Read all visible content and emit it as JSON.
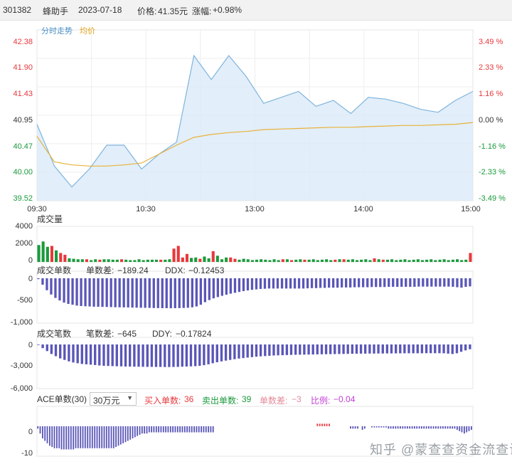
{
  "header": {
    "code": "301382",
    "name": "蜂助手",
    "date": "2023-07-18",
    "price_label": "价格:",
    "price": "41.35元",
    "change_label": "涨幅:",
    "change": "+0.98%"
  },
  "panels": {
    "price": {
      "legend_price": "分时走势",
      "legend_avg": "均价",
      "price_color": "#7fb5dd",
      "fill_color": "#dbeaf8",
      "avg_color": "#e8b23a",
      "y_ticks": [
        "42.38",
        "41.90",
        "41.43",
        "40.95",
        "40.47",
        "40.00",
        "39.52"
      ],
      "pct_ticks": [
        "3.49 %",
        "2.33 %",
        "1.16 %",
        "0.00 %",
        "-1.16 %",
        "-2.33 %",
        "-3.49 %"
      ],
      "x_ticks": [
        "09:30",
        "10:30",
        "13:00",
        "14:00",
        "15:00"
      ]
    },
    "volume": {
      "title": "成交量",
      "y_ticks": [
        "4000",
        "2000",
        "0"
      ]
    },
    "order_count": {
      "title": "成交单数",
      "diff_label": "单数差:",
      "diff_value": "−189.24",
      "ddx_label": "DDX:",
      "ddx_value": "−0.12453",
      "y_ticks": [
        "0",
        "-500",
        "-1,000"
      ]
    },
    "trade_count": {
      "title": "成交笔数",
      "diff_label": "笔数差:",
      "diff_value": "−645",
      "ddy_label": "DDY:",
      "ddy_value": "−0.17824",
      "y_ticks": [
        "0",
        "-3,000",
        "-6,000"
      ]
    },
    "ace": {
      "title": "ACE单数(30)",
      "select_value": "30万元",
      "buy_label": "买入单数:",
      "buy_value": "36",
      "sell_label": "卖出单数:",
      "sell_value": "39",
      "diff_label": "单数差:",
      "diff_value": "−3",
      "ratio_label": "比例:",
      "ratio_value": "−0.04",
      "y_ticks": [
        "0",
        "-10"
      ]
    }
  },
  "watermark": "知乎 @蒙查查资金流查询",
  "chart_data": [
    {
      "type": "line",
      "title": "",
      "x": [
        "09:30",
        "09:40",
        "09:50",
        "10:00",
        "10:10",
        "10:20",
        "10:30",
        "10:40",
        "10:50",
        "11:00",
        "11:10",
        "11:20",
        "11:30",
        "13:00",
        "13:10",
        "13:20",
        "13:30",
        "13:40",
        "13:50",
        "14:00",
        "14:10",
        "14:20",
        "14:30",
        "14:40",
        "14:50",
        "15:00"
      ],
      "series": [
        {
          "name": "分时走势",
          "values": [
            40.8,
            40.1,
            39.75,
            40.05,
            40.45,
            40.45,
            40.05,
            40.3,
            40.5,
            41.95,
            41.55,
            41.95,
            41.6,
            41.15,
            41.25,
            41.35,
            41.1,
            41.2,
            40.98,
            41.25,
            41.22,
            41.15,
            41.05,
            41.0,
            41.2,
            41.35
          ]
        },
        {
          "name": "均价",
          "values": [
            40.6,
            40.17,
            40.12,
            40.1,
            40.1,
            40.12,
            40.15,
            40.3,
            40.45,
            40.58,
            40.63,
            40.66,
            40.68,
            40.71,
            40.72,
            40.73,
            40.74,
            40.75,
            40.75,
            40.76,
            40.77,
            40.78,
            40.78,
            40.79,
            40.8,
            40.83
          ]
        }
      ],
      "ylim": [
        39.52,
        42.38
      ],
      "y_right_percent": [
        -3.49,
        3.49
      ],
      "grid": true
    },
    {
      "type": "bar",
      "title": "成交量",
      "values_up": [
        1400,
        0,
        900,
        1800,
        1100,
        1000,
        800,
        300,
        0,
        200,
        0,
        300,
        0,
        0,
        250,
        0,
        200,
        0,
        0,
        300,
        0,
        0,
        0,
        0,
        0,
        0,
        0,
        0,
        250,
        0,
        0,
        1500,
        1800,
        500,
        900,
        400,
        0,
        350,
        0,
        0,
        1200,
        300,
        0,
        400,
        500,
        350,
        200,
        0,
        0,
        0,
        0,
        0,
        0,
        0,
        0,
        0,
        300,
        0,
        200,
        0,
        0,
        250,
        0,
        200,
        0,
        0,
        0,
        0,
        250,
        0,
        300,
        0,
        0,
        0,
        200,
        0,
        0,
        400,
        0,
        250,
        0,
        0,
        0,
        0,
        0,
        0,
        0,
        0,
        0,
        200,
        0,
        0,
        0,
        0,
        0,
        0,
        0,
        0,
        0,
        1000
      ],
      "values_down": [
        1900,
        2300,
        1700,
        1200,
        1300,
        600,
        700,
        400,
        350,
        300,
        300,
        250,
        200,
        300,
        200,
        300,
        300,
        250,
        250,
        200,
        250,
        200,
        200,
        300,
        200,
        250,
        250,
        250,
        200,
        250,
        300,
        900,
        1000,
        300,
        400,
        450,
        500,
        300,
        600,
        400,
        500,
        700,
        300,
        500,
        400,
        300,
        250,
        350,
        300,
        200,
        250,
        300,
        250,
        200,
        300,
        200,
        250,
        300,
        200,
        250,
        300,
        200,
        250,
        300,
        200,
        250,
        300,
        200,
        250,
        300,
        200,
        250,
        300,
        200,
        250,
        300,
        200,
        250,
        300,
        200,
        250,
        300,
        200,
        250,
        300,
        200,
        250,
        300,
        200,
        250,
        300,
        200,
        250,
        300,
        200,
        250,
        300,
        200,
        250,
        400
      ],
      "ylim": [
        0,
        4000
      ]
    },
    {
      "type": "bar",
      "title": "成交单数",
      "values": [
        -20,
        -150,
        -280,
        -380,
        -460,
        -520,
        -570,
        -600,
        -620,
        -640,
        -650,
        -655,
        -660,
        -665,
        -668,
        -670,
        -672,
        -675,
        -678,
        -680,
        -682,
        -684,
        -686,
        -688,
        -690,
        -692,
        -694,
        -696,
        -698,
        -700,
        -700,
        -702,
        -700,
        -698,
        -695,
        -690,
        -680,
        -660,
        -620,
        -560,
        -510,
        -470,
        -440,
        -410,
        -385,
        -360,
        -340,
        -320,
        -300,
        -285,
        -270,
        -260,
        -250,
        -245,
        -240,
        -240,
        -240,
        -240,
        -240,
        -240,
        -240,
        -240,
        -240,
        -235,
        -230,
        -230,
        -225,
        -225,
        -220,
        -220,
        -220,
        -215,
        -215,
        -215,
        -210,
        -210,
        -210,
        -210,
        -205,
        -205,
        -205,
        -205,
        -200,
        -200,
        -200,
        -200,
        -200,
        -200,
        -200,
        -195,
        -195,
        -195,
        -195,
        -195,
        -195,
        -195,
        -195,
        -200,
        -210,
        -220,
        -200,
        -190
      ],
      "ylim": [
        -1000,
        0
      ]
    },
    {
      "type": "bar",
      "title": "成交笔数",
      "values": [
        -50,
        -500,
        -900,
        -1300,
        -1600,
        -1900,
        -2100,
        -2300,
        -2450,
        -2550,
        -2650,
        -2700,
        -2750,
        -2800,
        -2850,
        -2900,
        -2920,
        -2940,
        -2960,
        -2980,
        -3000,
        -3010,
        -3020,
        -3030,
        -3040,
        -3050,
        -3050,
        -3060,
        -3060,
        -3070,
        -3070,
        -3060,
        -3050,
        -3020,
        -3000,
        -2980,
        -2950,
        -2900,
        -2820,
        -2700,
        -2550,
        -2420,
        -2300,
        -2200,
        -2100,
        -2000,
        -1920,
        -1850,
        -1780,
        -1720,
        -1660,
        -1620,
        -1580,
        -1540,
        -1500,
        -1480,
        -1460,
        -1440,
        -1420,
        -1400,
        -1390,
        -1380,
        -1370,
        -1360,
        -1350,
        -1340,
        -1330,
        -1320,
        -1310,
        -1300,
        -1290,
        -1280,
        -1270,
        -1260,
        -1250,
        -1250,
        -1240,
        -1240,
        -1230,
        -1230,
        -1220,
        -1220,
        -1210,
        -1210,
        -1200,
        -1200,
        -1200,
        -1200,
        -1200,
        -1190,
        -1190,
        -1190,
        -1190,
        -1200,
        -1250,
        -1300,
        -1200,
        -1000,
        -800,
        -645
      ],
      "ylim": [
        -6000,
        0
      ]
    },
    {
      "type": "bar",
      "title": "ACE单数(30)",
      "values": [
        -1,
        -3,
        -5,
        -6,
        -7,
        -8,
        -8.5,
        -9,
        -9,
        -9,
        -9.5,
        -9.5,
        -9.5,
        -9.5,
        -9.5,
        -9.5,
        -9,
        -9,
        -9,
        -9,
        -9,
        -9,
        -9,
        -9,
        -9,
        -9,
        -9,
        -9,
        -9,
        -9,
        -9,
        -9,
        -9,
        -8.5,
        -8,
        -7.5,
        -7,
        -6.5,
        -6,
        -5.5,
        -5,
        -4.5,
        -4,
        -3.5,
        -3,
        -3,
        -3,
        -2.5,
        -2.5,
        -2.5,
        -2.5,
        -2.5,
        -2.5,
        -2.5,
        -2.5,
        -2.5,
        -2.5,
        -2.5,
        -2.5,
        -2.5,
        -2.5,
        -2.5,
        -2.5,
        -2.5,
        -2.5,
        -2.5,
        -2.5,
        -2.5,
        -2.5,
        -2.5,
        -2.5,
        -2.5,
        -2.5,
        -2.5,
        -2.5,
        0,
        0,
        0,
        0,
        0,
        0,
        0,
        0,
        0,
        0,
        0,
        0,
        0,
        0,
        0,
        0,
        0,
        0,
        0,
        0,
        0,
        0,
        0,
        0,
        0,
        0,
        0,
        0,
        0,
        0,
        0,
        0,
        0,
        0,
        0,
        0,
        0,
        0,
        0,
        0,
        0,
        0,
        0,
        1,
        1,
        1,
        1,
        1,
        1,
        0,
        0,
        0,
        0,
        0,
        0,
        0,
        0,
        -1,
        -1,
        -1,
        -1,
        0,
        -1.5,
        -1,
        0,
        0,
        -0.5,
        -0.5,
        -0.5,
        -0.5,
        -0.5,
        -0.5,
        -0.5,
        -1,
        -1,
        -1,
        -1,
        -1,
        -1,
        -1,
        -1,
        -1,
        -1,
        -1,
        -1,
        -1,
        -1,
        -1,
        -1,
        -1,
        -1,
        -1,
        -1,
        -1,
        -1,
        -1,
        -1,
        -1,
        -1,
        -1,
        -1,
        -1,
        -1.5,
        -2,
        -2.5,
        -3,
        -2.5,
        -2,
        -1.5
      ],
      "ylim": [
        -12,
        2
      ]
    }
  ]
}
